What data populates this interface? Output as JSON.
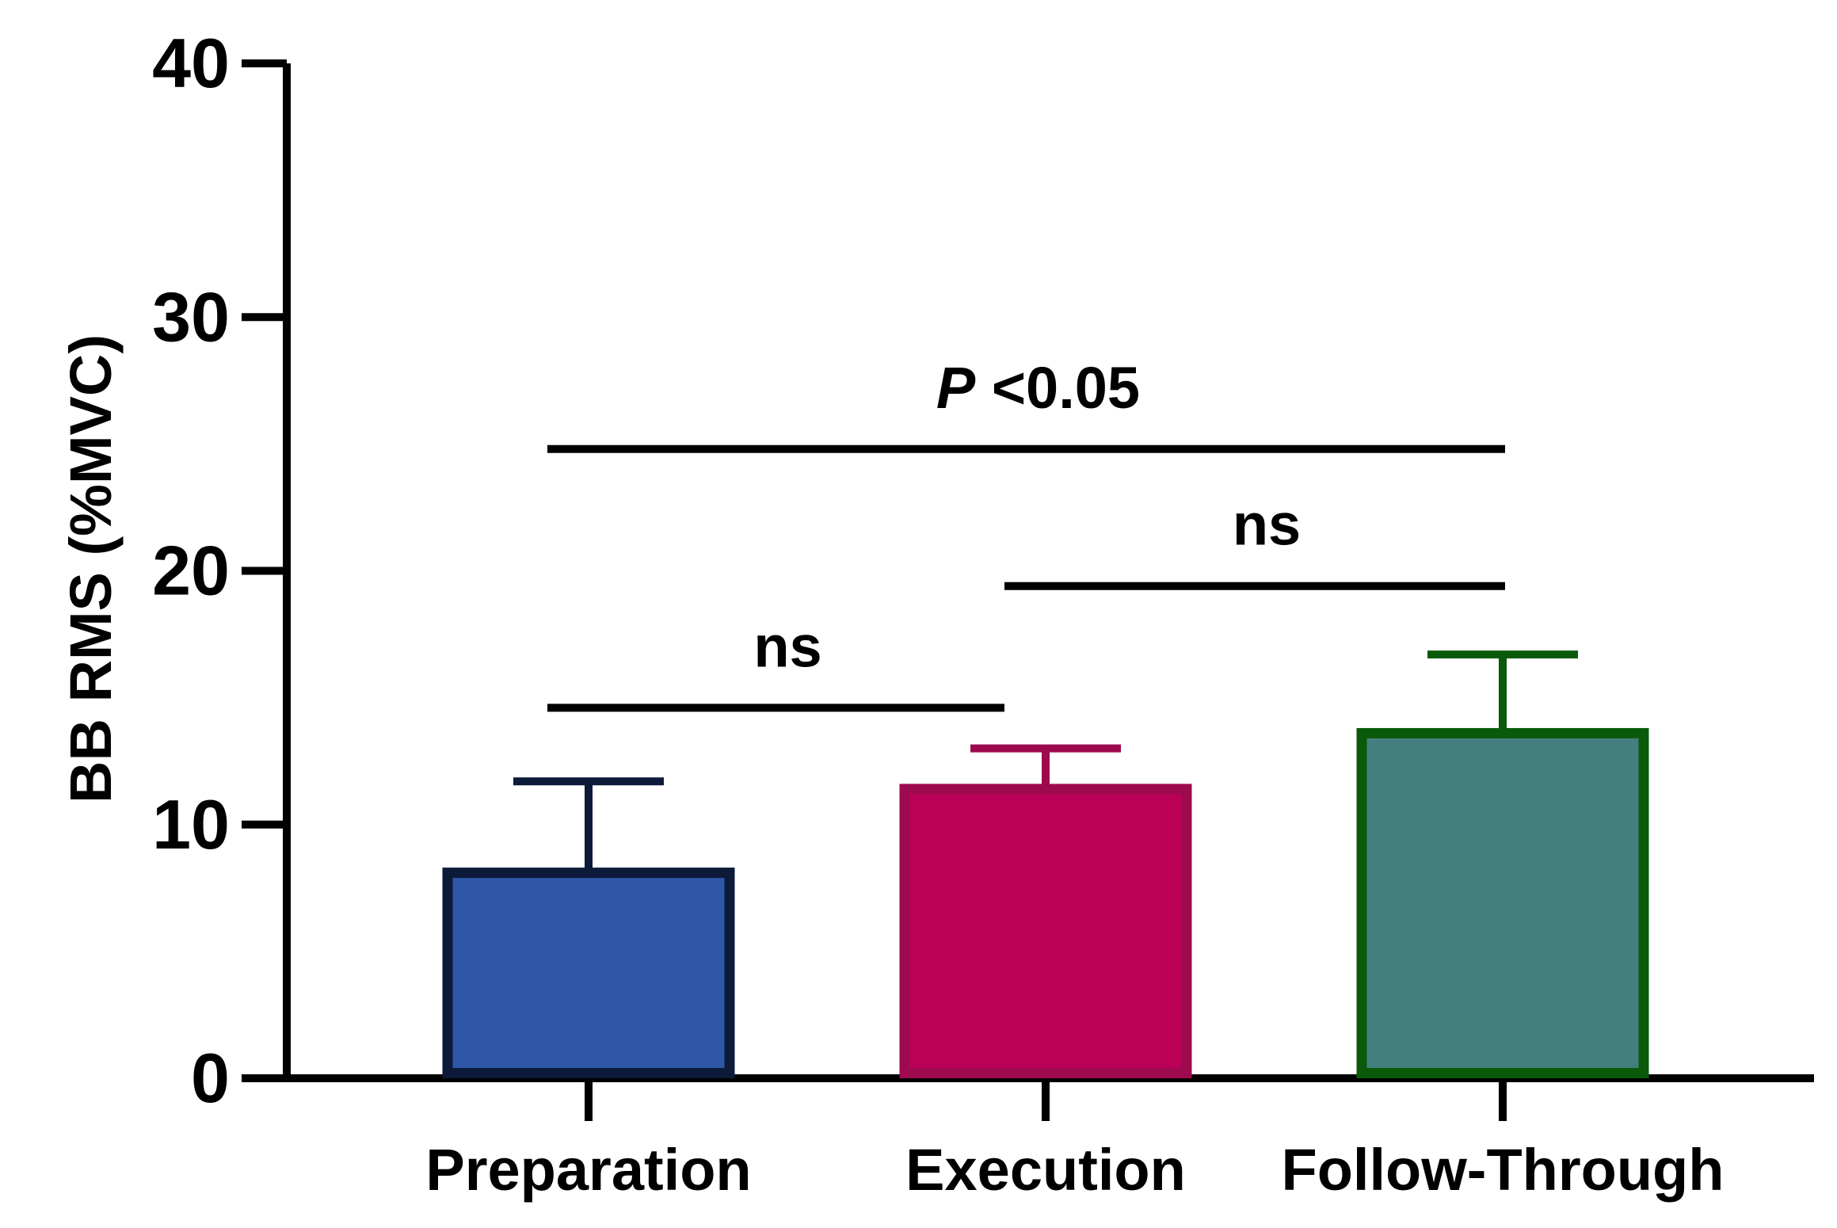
{
  "chart_data": {
    "type": "bar",
    "title": "",
    "xlabel": "",
    "ylabel": "BB RMS (%MVC)",
    "ylim": [
      0,
      40
    ],
    "yticks": [
      0,
      10,
      20,
      30,
      40
    ],
    "grid": false,
    "categories": [
      "Preparation",
      "Execution",
      "Follow-Through"
    ],
    "values": [
      8.1,
      11.4,
      13.6
    ],
    "error_upper": [
      11.7,
      13.0,
      16.7
    ],
    "fill_colors": [
      "#2E58A6",
      "#BA0157",
      "#447F7F"
    ],
    "edge_colors": [
      "#0D1A3A",
      "#9E0A4E",
      "#0A5A0A"
    ],
    "significance": [
      {
        "from": "Preparation",
        "to": "Execution",
        "y": 14.6,
        "label_main": "ns",
        "label_suffix": ""
      },
      {
        "from": "Execution",
        "to": "Follow-Through",
        "y": 19.4,
        "label_main": "ns",
        "label_suffix": ""
      },
      {
        "from": "Preparation",
        "to": "Follow-Through",
        "y": 24.8,
        "label_main": "P",
        "label_suffix": " <0.05"
      }
    ]
  }
}
